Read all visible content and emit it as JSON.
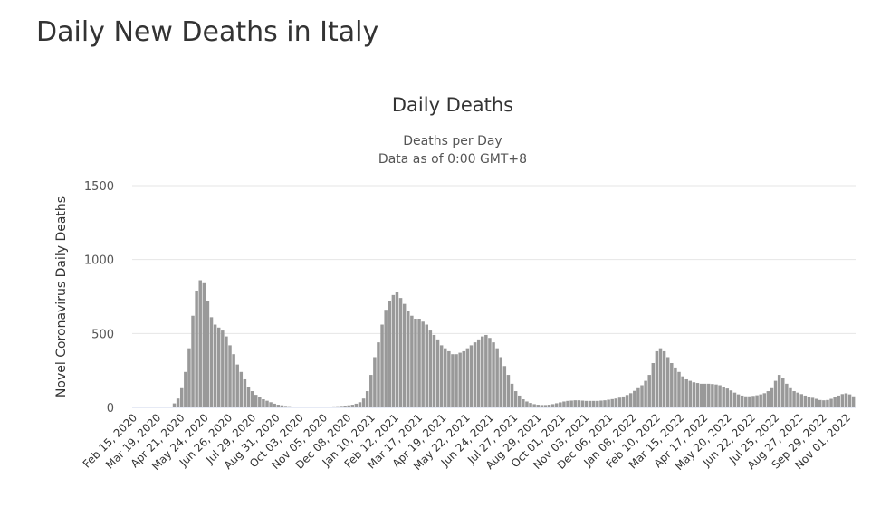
{
  "page": {
    "title": "Daily New Deaths in Italy"
  },
  "chart_data": {
    "type": "bar",
    "title": "Daily Deaths",
    "subtitle": [
      "Deaths per Day",
      "Data as of 0:00 GMT+8"
    ],
    "ylabel": "Novel Coronavirus Daily Deaths",
    "xlabel": "",
    "ylim": [
      0,
      1500
    ],
    "yticks": [
      0,
      500,
      1000,
      1500
    ],
    "grid": true,
    "legend": "none",
    "color": "#999999",
    "xtick_labels": [
      "Feb 15, 2020",
      "Mar 19, 2020",
      "Apr 21, 2020",
      "May 24, 2020",
      "Jun 26, 2020",
      "Jul 29, 2020",
      "Aug 31, 2020",
      "Oct 03, 2020",
      "Nov 05, 2020",
      "Dec 08, 2020",
      "Jan 10, 2021",
      "Feb 12, 2021",
      "Mar 17, 2021",
      "Apr 19, 2021",
      "May 22, 2021",
      "Jun 24, 2021",
      "Jul 27, 2021",
      "Aug 29, 2021",
      "Oct 01, 2021",
      "Nov 03, 2021",
      "Dec 06, 2021",
      "Jan 08, 2022",
      "Feb 10, 2022",
      "Mar 15, 2022",
      "Apr 17, 2022",
      "May 20, 2022",
      "Jun 22, 2022",
      "Jul 25, 2022",
      "Aug 27, 2022",
      "Sep 29, 2022",
      "Nov 01, 2022"
    ],
    "x_start": "Feb 15, 2020",
    "x_interval_days": 3,
    "values": [
      0,
      0,
      0,
      0,
      0,
      0,
      1,
      4,
      27,
      60,
      130,
      240,
      400,
      620,
      790,
      860,
      840,
      720,
      610,
      560,
      540,
      520,
      480,
      420,
      360,
      290,
      240,
      190,
      140,
      110,
      85,
      70,
      55,
      45,
      35,
      25,
      18,
      14,
      10,
      8,
      6,
      5,
      4,
      3,
      3,
      3,
      4,
      4,
      5,
      6,
      6,
      7,
      8,
      10,
      12,
      14,
      18,
      25,
      35,
      60,
      110,
      220,
      340,
      440,
      560,
      660,
      720,
      760,
      780,
      740,
      700,
      650,
      620,
      600,
      600,
      580,
      560,
      520,
      490,
      460,
      420,
      400,
      380,
      360,
      360,
      370,
      380,
      400,
      420,
      440,
      460,
      480,
      490,
      470,
      440,
      400,
      340,
      280,
      220,
      160,
      110,
      80,
      55,
      40,
      30,
      22,
      18,
      16,
      16,
      18,
      22,
      28,
      34,
      40,
      44,
      46,
      48,
      48,
      46,
      44,
      44,
      44,
      44,
      46,
      48,
      52,
      56,
      60,
      66,
      74,
      84,
      96,
      112,
      130,
      150,
      180,
      220,
      300,
      380,
      400,
      380,
      340,
      300,
      270,
      240,
      210,
      190,
      180,
      170,
      165,
      160,
      160,
      160,
      158,
      155,
      150,
      140,
      128,
      115,
      100,
      88,
      80,
      75,
      75,
      78,
      82,
      88,
      96,
      110,
      130,
      180,
      220,
      200,
      160,
      130,
      110,
      100,
      90,
      80,
      72,
      65,
      58,
      50,
      48,
      50,
      58,
      70,
      80,
      90,
      95,
      88,
      75
    ]
  }
}
